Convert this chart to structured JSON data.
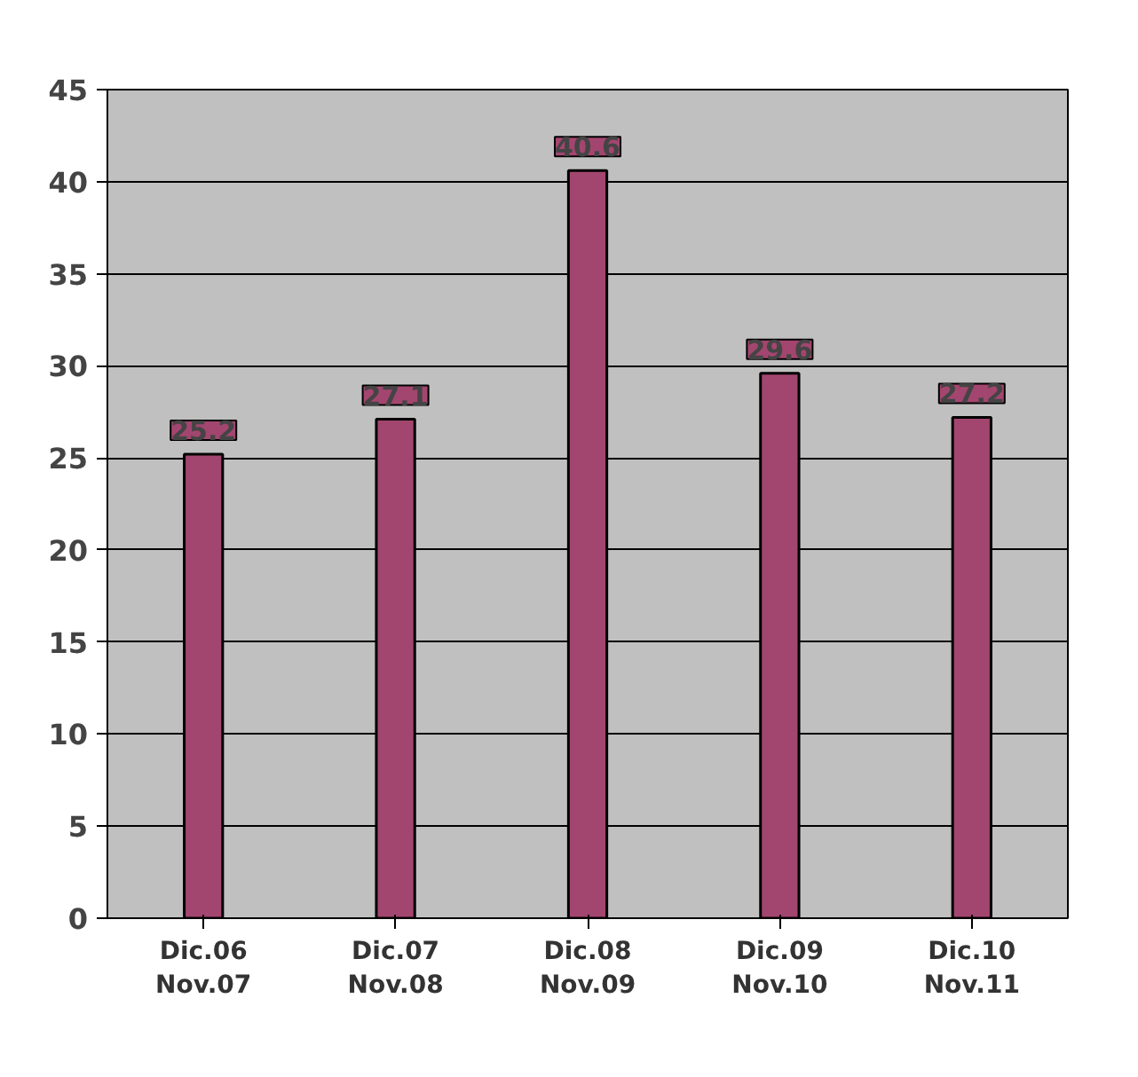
{
  "chart_data": {
    "type": "bar",
    "categories": [
      "Dic.06\nNov.07",
      "Dic.07\nNov.08",
      "Dic.08\nNov.09",
      "Dic.09\nNov.10",
      "Dic.10\nNov.11"
    ],
    "values": [
      25.2,
      27.1,
      40.6,
      29.6,
      27.2
    ],
    "color": "#a3466f",
    "ylim": [
      0,
      45
    ],
    "yticks": [
      0,
      5,
      10,
      15,
      20,
      25,
      30,
      35,
      40,
      45
    ],
    "grid": "y",
    "data_labels": true
  }
}
